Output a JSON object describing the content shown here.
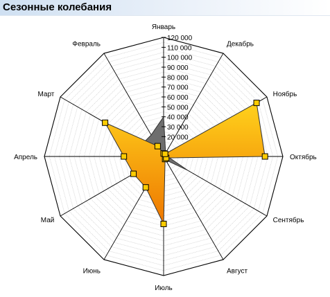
{
  "panel": {
    "title": "Сезонные колебания"
  },
  "chart_data": {
    "type": "radar",
    "categories": [
      "Январь",
      "Февраль",
      "Март",
      "Апрель",
      "Май",
      "Июнь",
      "Июль",
      "Август",
      "Сентябрь",
      "Октябрь",
      "Ноябрь",
      "Декабрь"
    ],
    "direction": "counter-clockwise",
    "rlim": [
      0,
      120000
    ],
    "ticks": [
      {
        "value": 20000,
        "label": "20 000"
      },
      {
        "value": 30000,
        "label": "30 000"
      },
      {
        "value": 40000,
        "label": "40 000"
      },
      {
        "value": 50000,
        "label": "50 000"
      },
      {
        "value": 60000,
        "label": "60 000"
      },
      {
        "value": 70000,
        "label": "70 000"
      },
      {
        "value": 80000,
        "label": "80 000"
      },
      {
        "value": 90000,
        "label": "90 000"
      },
      {
        "value": 100000,
        "label": "100 000"
      },
      {
        "value": 110000,
        "label": "110 000"
      },
      {
        "value": 120000,
        "label": "120 000"
      }
    ],
    "grid": true,
    "series": [
      {
        "fill": "#6e6e6e",
        "stroke": "#333333",
        "values": [
          40000,
          25000,
          25000,
          5000,
          5000,
          3000,
          3000,
          4000,
          28000,
          4000,
          5000,
          4000
        ]
      },
      {
        "fill_top": "#ffd21c",
        "fill_bottom": "#ee7600",
        "stroke": "#333333",
        "marker_fill": "#ffcc00",
        "values": [
          3000,
          12000,
          68000,
          40000,
          35000,
          36000,
          68000,
          3000,
          3000,
          102000,
          108000,
          3000
        ]
      }
    ]
  }
}
